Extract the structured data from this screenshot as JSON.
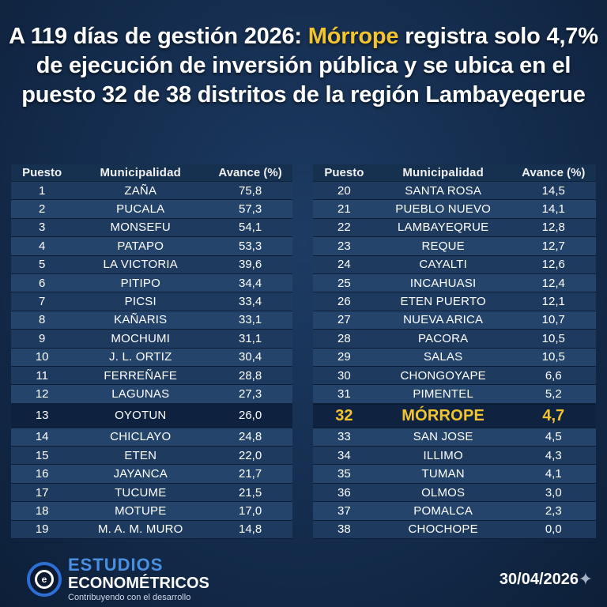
{
  "title": {
    "part1": "A 119 días de gestión 2026: ",
    "highlight": "Mórrope",
    "part2": " registra solo 4,7% de ejecución de inversión pública y se ubica en el puesto 32 de 38 distritos de la región Lambayeqerue"
  },
  "headers": {
    "rank": "Puesto",
    "municipality": "Municipalidad",
    "progress": "Avance (%)"
  },
  "left_rows": [
    {
      "rank": "1",
      "name": "ZAÑA",
      "value": "75,8"
    },
    {
      "rank": "2",
      "name": "PUCALA",
      "value": "57,3"
    },
    {
      "rank": "3",
      "name": "MONSEFU",
      "value": "54,1"
    },
    {
      "rank": "4",
      "name": "PATAPO",
      "value": "53,3"
    },
    {
      "rank": "5",
      "name": "LA VICTORIA",
      "value": "39,6"
    },
    {
      "rank": "6",
      "name": "PITIPO",
      "value": "34,4"
    },
    {
      "rank": "7",
      "name": "PICSI",
      "value": "33,4"
    },
    {
      "rank": "8",
      "name": "KAÑARIS",
      "value": "33,1"
    },
    {
      "rank": "9",
      "name": "MOCHUMI",
      "value": "31,1"
    },
    {
      "rank": "10",
      "name": "J. L. ORTIZ",
      "value": "30,4"
    },
    {
      "rank": "11",
      "name": "FERREÑAFE",
      "value": "28,8"
    },
    {
      "rank": "12",
      "name": "LAGUNAS",
      "value": "27,3"
    },
    {
      "rank": "13",
      "name": "OYOTUN",
      "value": "26,0"
    },
    {
      "rank": "14",
      "name": "CHICLAYO",
      "value": "24,8"
    },
    {
      "rank": "15",
      "name": "ETEN",
      "value": "22,0"
    },
    {
      "rank": "16",
      "name": "JAYANCA",
      "value": "21,7"
    },
    {
      "rank": "17",
      "name": "TUCUME",
      "value": "21,5"
    },
    {
      "rank": "18",
      "name": "MOTUPE",
      "value": "17,0"
    },
    {
      "rank": "19",
      "name": "M. A. M. MURO",
      "value": "14,8"
    }
  ],
  "right_rows": [
    {
      "rank": "20",
      "name": "SANTA ROSA",
      "value": "14,5"
    },
    {
      "rank": "21",
      "name": "PUEBLO NUEVO",
      "value": "14,1"
    },
    {
      "rank": "22",
      "name": "LAMBAYEQRUE",
      "value": "12,8"
    },
    {
      "rank": "23",
      "name": "REQUE",
      "value": "12,7"
    },
    {
      "rank": "24",
      "name": "CAYALTI",
      "value": "12,6"
    },
    {
      "rank": "25",
      "name": "INCAHUASI",
      "value": "12,4"
    },
    {
      "rank": "26",
      "name": "ETEN PUERTO",
      "value": "12,1"
    },
    {
      "rank": "27",
      "name": "NUEVA ARICA",
      "value": "10,7"
    },
    {
      "rank": "28",
      "name": "PACORA",
      "value": "10,5"
    },
    {
      "rank": "29",
      "name": "SALAS",
      "value": "10,5"
    },
    {
      "rank": "30",
      "name": "CHONGOYAPE",
      "value": "6,6"
    },
    {
      "rank": "31",
      "name": "PIMENTEL",
      "value": "5,2"
    },
    {
      "rank": "32",
      "name": "MÓRROPE",
      "value": "4,7"
    },
    {
      "rank": "33",
      "name": "SAN JOSE",
      "value": "4,5"
    },
    {
      "rank": "34",
      "name": "ILLIMO",
      "value": "4,3"
    },
    {
      "rank": "35",
      "name": "TUMAN",
      "value": "4,1"
    },
    {
      "rank": "36",
      "name": "OLMOS",
      "value": "3,0"
    },
    {
      "rank": "37",
      "name": "POMALCA",
      "value": "2,3"
    },
    {
      "rank": "38",
      "name": "CHOCHOPE",
      "value": "0,0"
    }
  ],
  "highlight_rank": "32",
  "logo": {
    "icon": "e-circle-logo-icon",
    "glyph": "e",
    "line1": "ESTUDIOS",
    "line2": "ECONOMÉTRICOS",
    "tagline": "Contribuyendo con el desarrollo"
  },
  "date": "30/04/2026",
  "colors": {
    "background": "#142c4d",
    "highlight": "#f4c430",
    "brand_blue": "#4a90e2"
  }
}
